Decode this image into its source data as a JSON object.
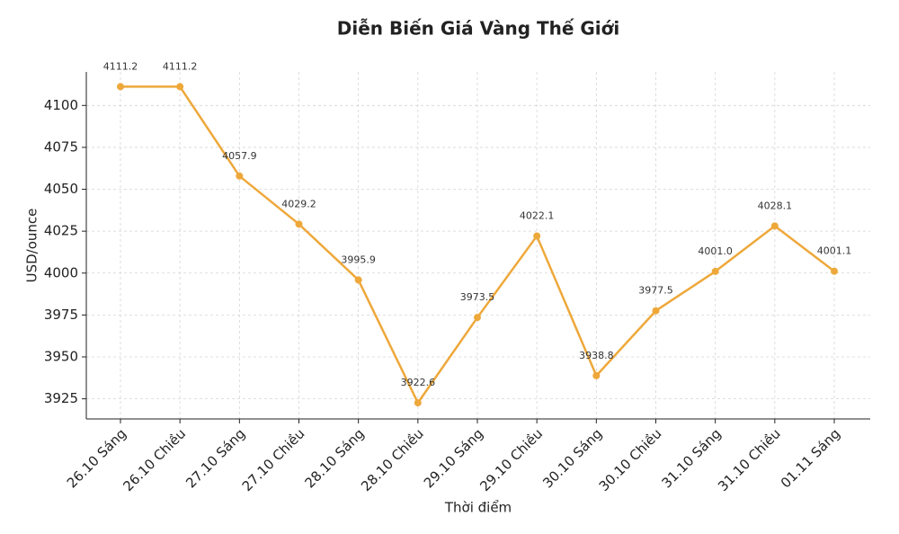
{
  "chart_data": {
    "type": "line",
    "title": "Diễn Biến Giá Vàng Thế Giới",
    "x_label": "Thời điểm",
    "y_label": "USD/ounce",
    "categories": [
      "26.10 Sáng",
      "26.10 Chiều",
      "27.10 Sáng",
      "27.10 Chiều",
      "28.10 Sáng",
      "28.10 Chiều",
      "29.10 Sáng",
      "29.10 Chiều",
      "30.10 Sáng",
      "30.10 Chiều",
      "31.10 Sáng",
      "31.10 Chiều",
      "01.11 Sáng"
    ],
    "values": [
      4111.2,
      4111.2,
      4057.9,
      4029.2,
      3995.9,
      3922.6,
      3973.5,
      4022.1,
      3938.8,
      3977.5,
      4001.0,
      4028.1,
      4001.1
    ],
    "value_labels": [
      "4111.2",
      "4111.2",
      "4057.9",
      "4029.2",
      "3995.9",
      "3922.6",
      "3973.5",
      "4022.1",
      "3938.8",
      "3977.5",
      "4001.0",
      "4028.1",
      "4001.1"
    ],
    "color": "#eea83a",
    "ylim": [
      3913,
      4120
    ],
    "yticks": [
      3925,
      3950,
      3975,
      4000,
      4025,
      4050,
      4075,
      4100
    ],
    "grid": true
  }
}
